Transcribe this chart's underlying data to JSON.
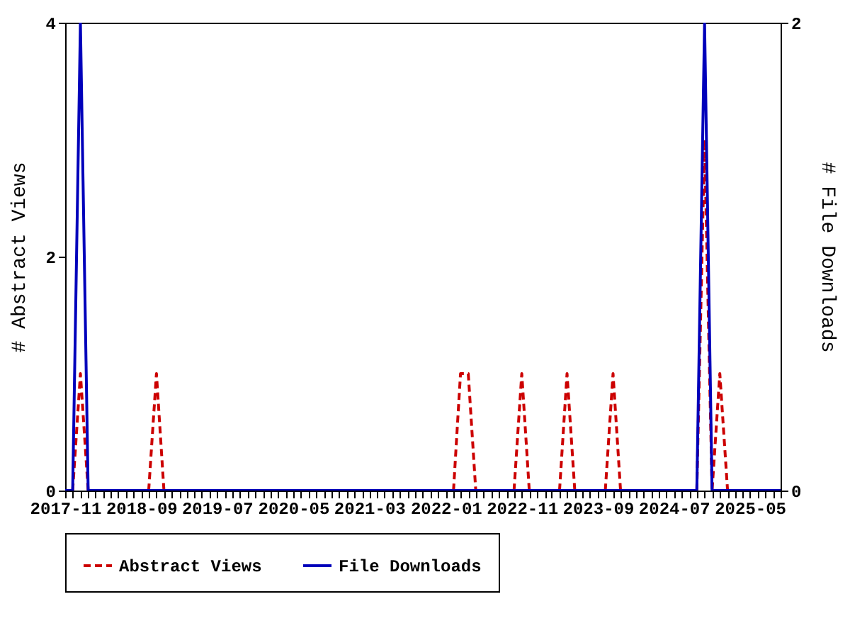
{
  "chart_data": {
    "type": "line",
    "ylabel": "# Abstract Views",
    "y2label": "# File Downloads",
    "x": [
      "2017-11",
      "2017-12",
      "2018-01",
      "2018-02",
      "2018-03",
      "2018-04",
      "2018-05",
      "2018-06",
      "2018-07",
      "2018-08",
      "2018-09",
      "2018-10",
      "2018-11",
      "2018-12",
      "2019-01",
      "2019-02",
      "2019-03",
      "2019-04",
      "2019-05",
      "2019-06",
      "2019-07",
      "2019-08",
      "2019-09",
      "2019-10",
      "2019-11",
      "2019-12",
      "2020-01",
      "2020-02",
      "2020-03",
      "2020-04",
      "2020-05",
      "2020-06",
      "2020-07",
      "2020-08",
      "2020-09",
      "2020-10",
      "2020-11",
      "2020-12",
      "2021-01",
      "2021-02",
      "2021-03",
      "2021-04",
      "2021-05",
      "2021-06",
      "2021-07",
      "2021-08",
      "2021-09",
      "2021-10",
      "2021-11",
      "2021-12",
      "2022-01",
      "2022-02",
      "2022-03",
      "2022-04",
      "2022-05",
      "2022-06",
      "2022-07",
      "2022-08",
      "2022-09",
      "2022-10",
      "2022-11",
      "2022-12",
      "2023-01",
      "2023-02",
      "2023-03",
      "2023-04",
      "2023-05",
      "2023-06",
      "2023-07",
      "2023-08",
      "2023-09",
      "2023-10",
      "2023-11",
      "2023-12",
      "2024-01",
      "2024-02",
      "2024-03",
      "2024-04",
      "2024-05",
      "2024-06",
      "2024-07",
      "2024-08",
      "2024-09",
      "2024-10",
      "2024-11",
      "2024-12",
      "2025-01",
      "2025-02",
      "2025-03",
      "2025-04",
      "2025-05",
      "2025-06",
      "2025-07",
      "2025-08",
      "2025-09"
    ],
    "series": [
      {
        "name": "Abstract Views",
        "color": "#cc0000",
        "line_style": "dashed",
        "axis": "y",
        "values": [
          null,
          0,
          1,
          0,
          null,
          null,
          null,
          null,
          null,
          null,
          null,
          0,
          1,
          0,
          null,
          null,
          null,
          null,
          null,
          null,
          null,
          null,
          null,
          null,
          null,
          null,
          null,
          null,
          null,
          null,
          null,
          null,
          null,
          null,
          null,
          null,
          null,
          null,
          null,
          null,
          null,
          null,
          null,
          null,
          null,
          null,
          null,
          null,
          null,
          null,
          null,
          0,
          1,
          1,
          0,
          null,
          null,
          null,
          null,
          0,
          1,
          0,
          null,
          null,
          null,
          0,
          1,
          0,
          null,
          null,
          null,
          0,
          1,
          0,
          null,
          null,
          null,
          null,
          null,
          null,
          null,
          null,
          null,
          0,
          3,
          0,
          1,
          0,
          null,
          null,
          null,
          null,
          null,
          null,
          null
        ]
      },
      {
        "name": "File Downloads",
        "color": "#0000bb",
        "line_style": "solid",
        "axis": "y2",
        "values": [
          0,
          0,
          2,
          0,
          0,
          0,
          0,
          0,
          0,
          0,
          0,
          0,
          0,
          0,
          0,
          0,
          0,
          0,
          0,
          0,
          0,
          0,
          0,
          0,
          0,
          0,
          0,
          0,
          0,
          0,
          0,
          0,
          0,
          0,
          0,
          0,
          0,
          0,
          0,
          0,
          0,
          0,
          0,
          0,
          0,
          0,
          0,
          0,
          0,
          0,
          0,
          0,
          0,
          0,
          0,
          0,
          0,
          0,
          0,
          0,
          0,
          0,
          0,
          0,
          0,
          0,
          0,
          0,
          0,
          0,
          0,
          0,
          0,
          0,
          0,
          0,
          0,
          0,
          0,
          0,
          0,
          0,
          0,
          0,
          2,
          0,
          0,
          0,
          0,
          0,
          0,
          0,
          0,
          0,
          0
        ]
      }
    ],
    "xlim": [
      "2017-11",
      "2025-09"
    ],
    "xticks": [
      {
        "value": "2017-11",
        "label": "2017-11"
      },
      {
        "value": "2017-12",
        "label": null
      },
      {
        "value": "2018-01",
        "label": null
      },
      {
        "value": "2018-02",
        "label": null
      },
      {
        "value": "2018-03",
        "label": null
      },
      {
        "value": "2018-04",
        "label": null
      },
      {
        "value": "2018-05",
        "label": null
      },
      {
        "value": "2018-06",
        "label": null
      },
      {
        "value": "2018-07",
        "label": null
      },
      {
        "value": "2018-08",
        "label": null
      },
      {
        "value": "2018-09",
        "label": "2018-09"
      },
      {
        "value": "2018-10",
        "label": null
      },
      {
        "value": "2018-11",
        "label": null
      },
      {
        "value": "2018-12",
        "label": null
      },
      {
        "value": "2019-01",
        "label": null
      },
      {
        "value": "2019-02",
        "label": null
      },
      {
        "value": "2019-03",
        "label": null
      },
      {
        "value": "2019-04",
        "label": null
      },
      {
        "value": "2019-05",
        "label": null
      },
      {
        "value": "2019-06",
        "label": null
      },
      {
        "value": "2019-07",
        "label": "2019-07"
      },
      {
        "value": "2019-08",
        "label": null
      },
      {
        "value": "2019-09",
        "label": null
      },
      {
        "value": "2019-10",
        "label": null
      },
      {
        "value": "2019-11",
        "label": null
      },
      {
        "value": "2019-12",
        "label": null
      },
      {
        "value": "2020-01",
        "label": null
      },
      {
        "value": "2020-02",
        "label": null
      },
      {
        "value": "2020-03",
        "label": null
      },
      {
        "value": "2020-04",
        "label": null
      },
      {
        "value": "2020-05",
        "label": "2020-05"
      },
      {
        "value": "2020-06",
        "label": null
      },
      {
        "value": "2020-07",
        "label": null
      },
      {
        "value": "2020-08",
        "label": null
      },
      {
        "value": "2020-09",
        "label": null
      },
      {
        "value": "2020-10",
        "label": null
      },
      {
        "value": "2020-11",
        "label": null
      },
      {
        "value": "2020-12",
        "label": null
      },
      {
        "value": "2021-01",
        "label": null
      },
      {
        "value": "2021-02",
        "label": null
      },
      {
        "value": "2021-03",
        "label": "2021-03"
      },
      {
        "value": "2021-04",
        "label": null
      },
      {
        "value": "2021-05",
        "label": null
      },
      {
        "value": "2021-06",
        "label": null
      },
      {
        "value": "2021-07",
        "label": null
      },
      {
        "value": "2021-08",
        "label": null
      },
      {
        "value": "2021-09",
        "label": null
      },
      {
        "value": "2021-10",
        "label": null
      },
      {
        "value": "2021-11",
        "label": null
      },
      {
        "value": "2021-12",
        "label": null
      },
      {
        "value": "2022-01",
        "label": "2022-01"
      },
      {
        "value": "2022-02",
        "label": null
      },
      {
        "value": "2022-03",
        "label": null
      },
      {
        "value": "2022-04",
        "label": null
      },
      {
        "value": "2022-05",
        "label": null
      },
      {
        "value": "2022-06",
        "label": null
      },
      {
        "value": "2022-07",
        "label": null
      },
      {
        "value": "2022-08",
        "label": null
      },
      {
        "value": "2022-09",
        "label": null
      },
      {
        "value": "2022-10",
        "label": null
      },
      {
        "value": "2022-11",
        "label": "2022-11"
      },
      {
        "value": "2022-12",
        "label": null
      },
      {
        "value": "2023-01",
        "label": null
      },
      {
        "value": "2023-02",
        "label": null
      },
      {
        "value": "2023-03",
        "label": null
      },
      {
        "value": "2023-04",
        "label": null
      },
      {
        "value": "2023-05",
        "label": null
      },
      {
        "value": "2023-06",
        "label": null
      },
      {
        "value": "2023-07",
        "label": null
      },
      {
        "value": "2023-08",
        "label": null
      },
      {
        "value": "2023-09",
        "label": "2023-09"
      },
      {
        "value": "2023-10",
        "label": null
      },
      {
        "value": "2023-11",
        "label": null
      },
      {
        "value": "2023-12",
        "label": null
      },
      {
        "value": "2024-01",
        "label": null
      },
      {
        "value": "2024-02",
        "label": null
      },
      {
        "value": "2024-03",
        "label": null
      },
      {
        "value": "2024-04",
        "label": null
      },
      {
        "value": "2024-05",
        "label": null
      },
      {
        "value": "2024-06",
        "label": null
      },
      {
        "value": "2024-07",
        "label": "2024-07"
      },
      {
        "value": "2024-08",
        "label": null
      },
      {
        "value": "2024-09",
        "label": null
      },
      {
        "value": "2024-10",
        "label": null
      },
      {
        "value": "2024-11",
        "label": null
      },
      {
        "value": "2024-12",
        "label": null
      },
      {
        "value": "2025-01",
        "label": null
      },
      {
        "value": "2025-02",
        "label": null
      },
      {
        "value": "2025-03",
        "label": null
      },
      {
        "value": "2025-04",
        "label": null
      },
      {
        "value": "2025-05",
        "label": "2025-05"
      },
      {
        "value": "2025-06",
        "label": null
      },
      {
        "value": "2025-07",
        "label": null
      },
      {
        "value": "2025-08",
        "label": null
      },
      {
        "value": "2025-09",
        "label": null
      }
    ],
    "ylim": [
      0,
      4
    ],
    "yticks": [
      0,
      2,
      4
    ],
    "y2lim": [
      0,
      2
    ],
    "y2ticks": [
      0,
      2
    ],
    "legend": "bottom"
  }
}
